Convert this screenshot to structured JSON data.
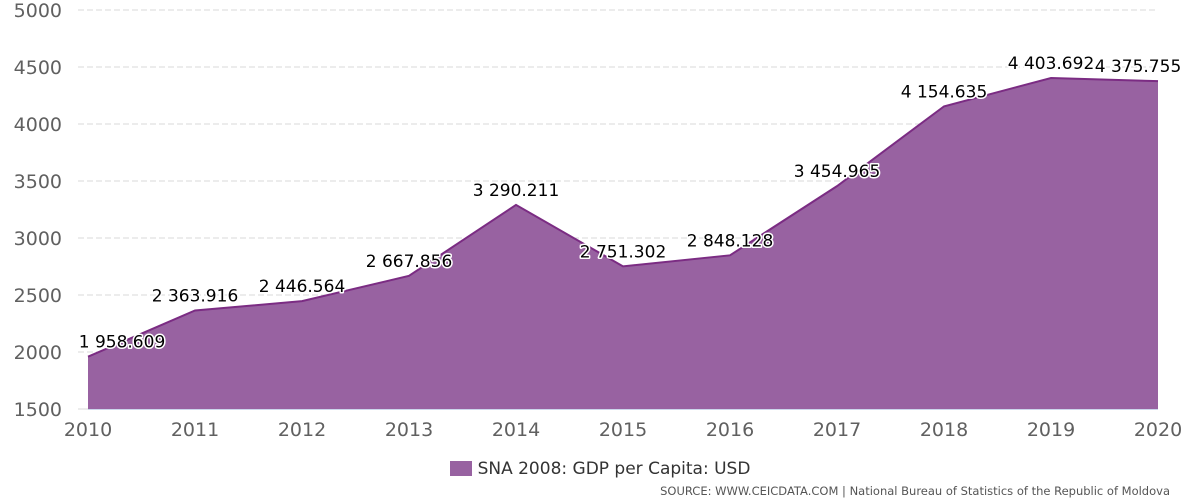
{
  "chart_data": {
    "type": "area",
    "x": [
      "2010",
      "2011",
      "2012",
      "2013",
      "2014",
      "2015",
      "2016",
      "2017",
      "2018",
      "2019",
      "2020"
    ],
    "series": [
      {
        "name": "SNA 2008: GDP per Capita: USD",
        "values": [
          1958.609,
          2363.916,
          2446.564,
          2667.856,
          3290.211,
          2751.302,
          2848.128,
          3454.965,
          4154.635,
          4403.692,
          4375.755
        ],
        "labels": [
          "1 958.609",
          "2 363.916",
          "2 446.564",
          "2 667.856",
          "3 290.211",
          "2 751.302",
          "2 848.128",
          "3 454.965",
          "4 154.635",
          "4 403.692",
          "4 375.755"
        ]
      }
    ],
    "ylim": [
      1500,
      5000
    ],
    "yticks": [
      1500,
      2000,
      2500,
      3000,
      3500,
      4000,
      4500,
      5000
    ],
    "grid": true,
    "legend_position": "bottom-center"
  },
  "legend": {
    "label": "SNA 2008: GDP per Capita: USD"
  },
  "source": {
    "text": "SOURCE: WWW.CEICDATA.COM | National Bureau of Statistics of the Republic of Moldova"
  },
  "colors": {
    "fill": "#9862a1",
    "line": "#7b2c83",
    "grid": "#d8d8d8",
    "axis": "#ccd6eb"
  }
}
